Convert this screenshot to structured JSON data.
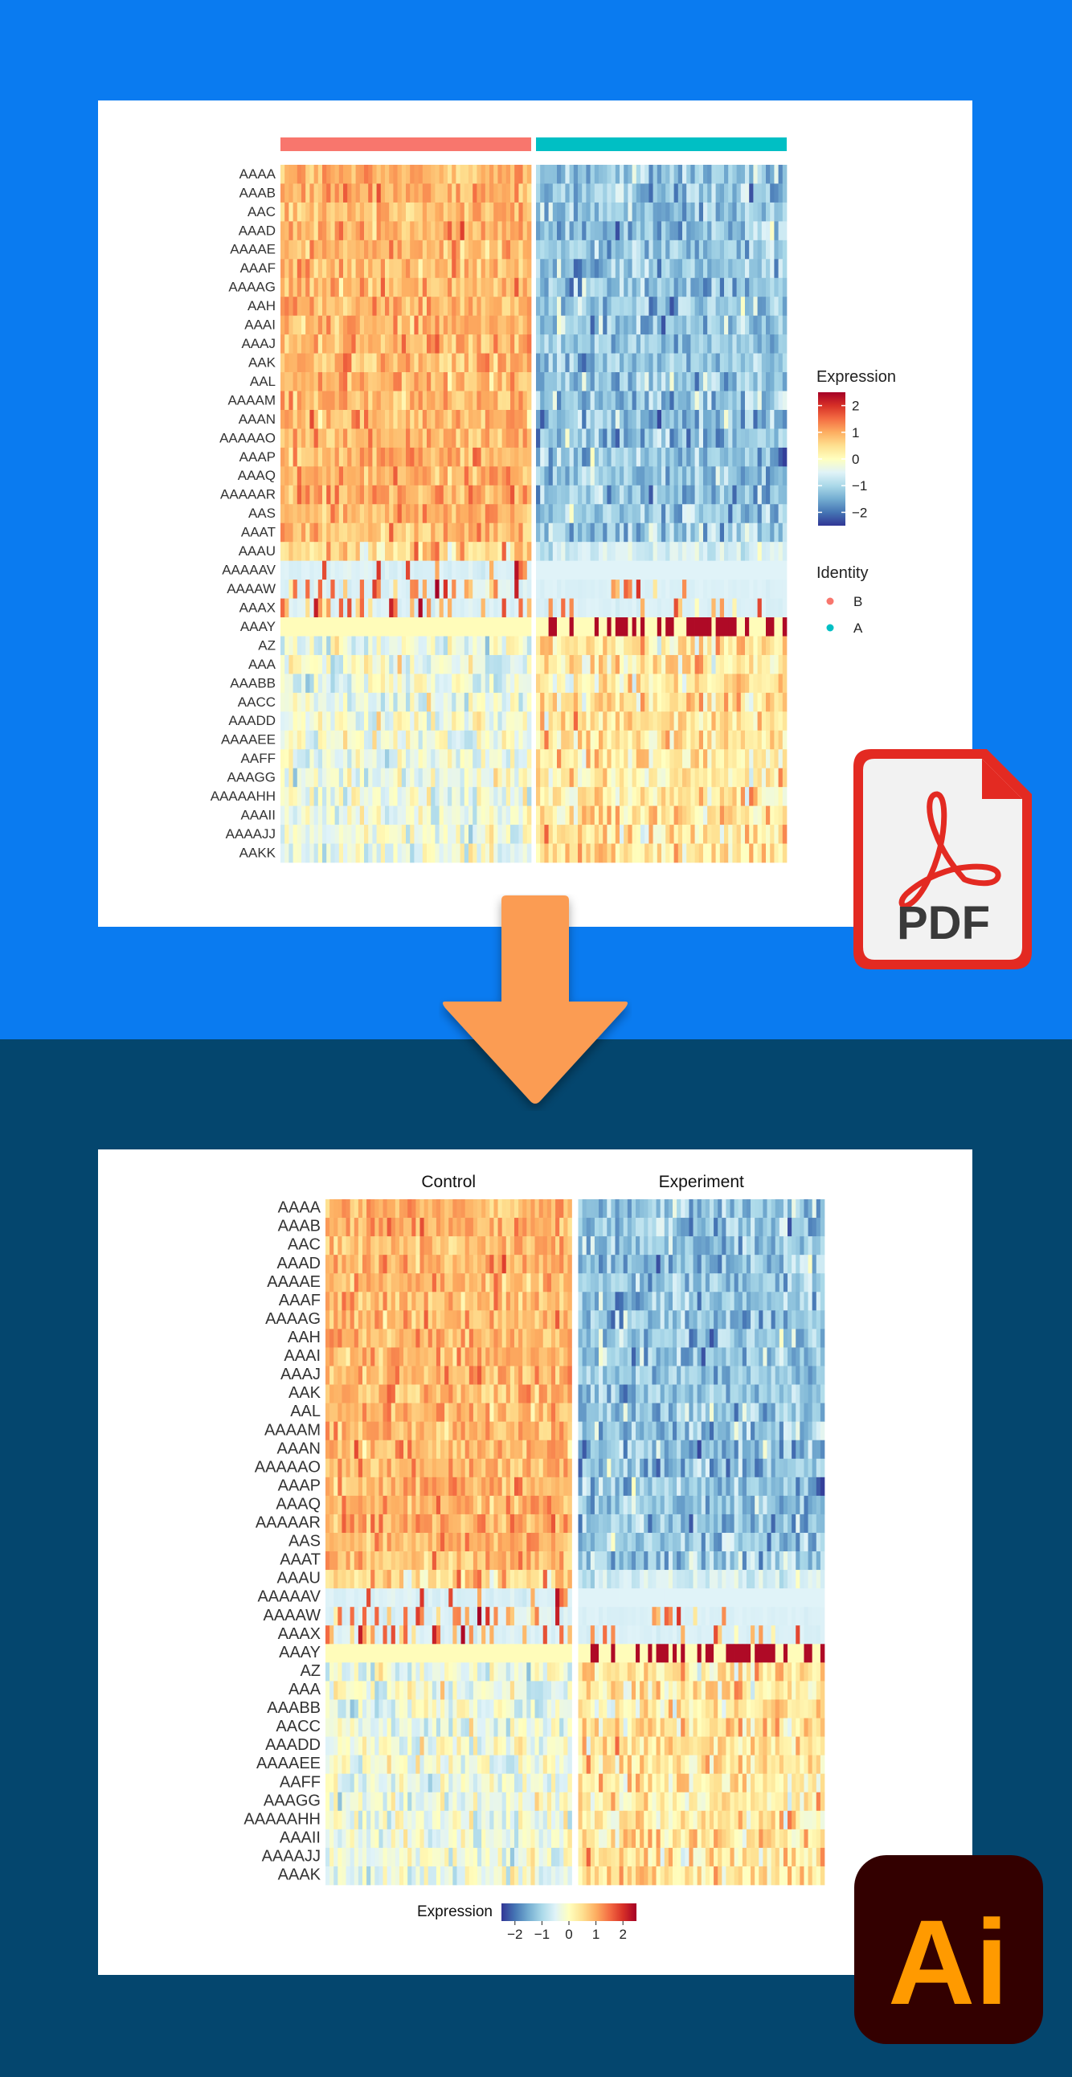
{
  "page": {
    "colors": {
      "top_bg": "#0A7BF0",
      "bottom_bg": "#04466E",
      "arrow": "#FB9C53",
      "pdf_red": "#E32A22",
      "ai_bg": "#330000",
      "ai_text": "#FF9A00"
    }
  },
  "badges": {
    "pdf_label": "PDF",
    "ai_label": "Ai",
    "pdf_icon": "acrobat-pdf-icon",
    "ai_icon": "illustrator-icon",
    "arrow_icon": "arrow-down-icon"
  },
  "chart_data": [
    {
      "type": "heatmap",
      "genes": [
        "AAAA",
        "AAAB",
        "AAC",
        "AAAD",
        "AAAAE",
        "AAAF",
        "AAAAG",
        "AAH",
        "AAAI",
        "AAAJ",
        "AAK",
        "AAL",
        "AAAAM",
        "AAAN",
        "AAAAAO",
        "AAAP",
        "AAAQ",
        "AAAAAR",
        "AAS",
        "AAAT",
        "AAAU",
        "AAAAAV",
        "AAAAW",
        "AAAX",
        "AAAY",
        "AZ",
        "AAA",
        "AAABB",
        "AACC",
        "AAADD",
        "AAAAEE",
        "AAFF",
        "AAAGG",
        "AAAAAHH",
        "AAAII",
        "AAAAJJ",
        "AAKK"
      ],
      "groups": [
        {
          "name": "B",
          "color": "#F8766D"
        },
        {
          "name": "A",
          "color": "#00BFC4"
        }
      ],
      "legend": {
        "expression_title": "Expression",
        "expression_ticks": [
          2,
          1,
          0,
          -1,
          -2
        ],
        "identity_title": "Identity",
        "identity_entries": [
          "B",
          "A"
        ],
        "placement": "right"
      },
      "colorscale": [
        "#313695",
        "#4575B4",
        "#74ADD1",
        "#ABD9E9",
        "#E0F3F8",
        "#FFFFBF",
        "#FEE090",
        "#FDAE61",
        "#F46D43",
        "#D73027",
        "#A50026"
      ],
      "value_range": [
        -2.5,
        2.5
      ]
    },
    {
      "type": "heatmap",
      "genes": [
        "AAAA",
        "AAAB",
        "AAC",
        "AAAD",
        "AAAAE",
        "AAAF",
        "AAAAG",
        "AAH",
        "AAAI",
        "AAAJ",
        "AAK",
        "AAL",
        "AAAAM",
        "AAAN",
        "AAAAAO",
        "AAAP",
        "AAAQ",
        "AAAAAR",
        "AAS",
        "AAAT",
        "AAAU",
        "AAAAAV",
        "AAAAW",
        "AAAX",
        "AAAY",
        "AZ",
        "AAA",
        "AAABB",
        "AACC",
        "AAADD",
        "AAAAEE",
        "AAFF",
        "AAAGG",
        "AAAAAHH",
        "AAAII",
        "AAAAJJ",
        "AAAK"
      ],
      "groups": [
        {
          "name": "Control"
        },
        {
          "name": "Experiment"
        }
      ],
      "legend": {
        "expression_title": "Expression",
        "expression_ticks": [
          -2,
          -1,
          0,
          1,
          2
        ],
        "placement": "bottom"
      },
      "colorscale": [
        "#313695",
        "#4575B4",
        "#74ADD1",
        "#ABD9E9",
        "#E0F3F8",
        "#FFFFBF",
        "#FEE090",
        "#FDAE61",
        "#F46D43",
        "#D73027",
        "#A50026"
      ],
      "value_range": [
        -2.5,
        2.5
      ]
    }
  ]
}
